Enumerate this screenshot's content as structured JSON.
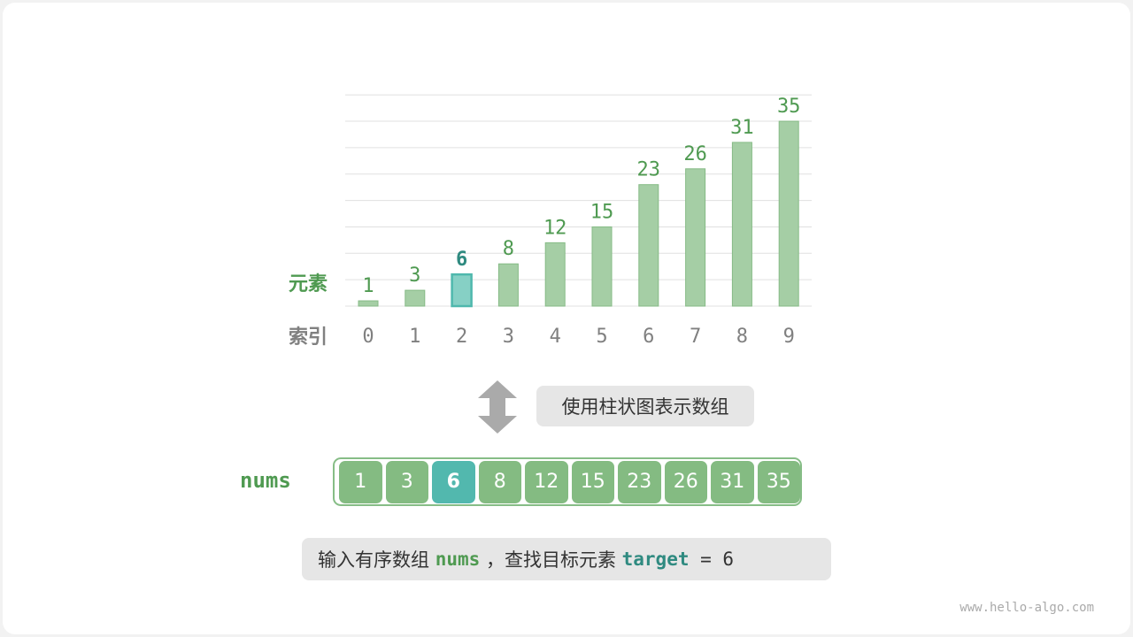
{
  "chart_data": {
    "type": "bar",
    "categories": [
      "0",
      "1",
      "2",
      "3",
      "4",
      "5",
      "6",
      "7",
      "8",
      "9"
    ],
    "values": [
      1,
      3,
      6,
      8,
      12,
      15,
      23,
      26,
      31,
      35
    ],
    "highlight_index": 2,
    "ylim": [
      0,
      40
    ],
    "grid": true,
    "row_labels": {
      "value": "元素",
      "index": "索引"
    },
    "colors": {
      "bar": "#a5cea5",
      "bar_border": "#86bb86",
      "highlight": "#86d0c5",
      "highlight_border": "#4fb8ad",
      "value_text": "#4f9a51",
      "highlight_text": "#2f8a80",
      "index_text": "#808080"
    }
  },
  "caption": "使用柱状图表示数组",
  "array": {
    "name": "nums",
    "values": [
      "1",
      "3",
      "6",
      "8",
      "12",
      "15",
      "23",
      "26",
      "31",
      "35"
    ],
    "highlight_index": 2
  },
  "note": {
    "prefix": "输入有序数组 ",
    "var1": "nums",
    "middle": " ，查找目标元素 ",
    "var2": "target",
    "suffix": " = 6"
  },
  "footer": "www.hello-algo.com",
  "icons": {
    "arrow": "double-arrow-vertical"
  }
}
